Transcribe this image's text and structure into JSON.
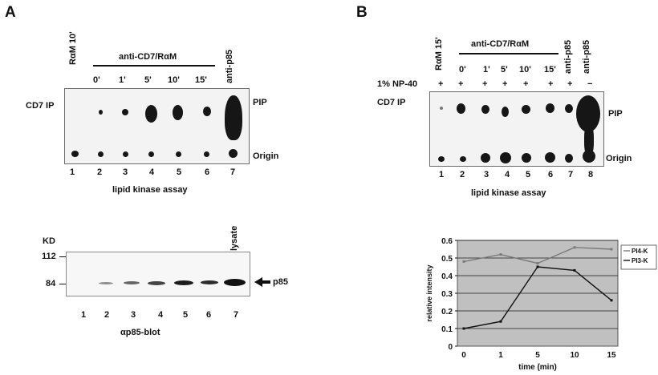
{
  "panel_a": {
    "letter": "A",
    "ip_label": "CD7 IP",
    "header_control": "RαM 10'",
    "header_group": "anti-CD7/RαM",
    "time_points": [
      "0'",
      "1'",
      "5'",
      "10'",
      "15'"
    ],
    "header_last": "anti-p85",
    "pip_label": "PIP",
    "origin_label": "Origin",
    "lane_numbers": [
      "1",
      "2",
      "3",
      "4",
      "5",
      "6",
      "7"
    ],
    "assay_label": "lipid kinase assay",
    "blot": {
      "kd_label": "KD",
      "marker_112": "112",
      "marker_84": "84",
      "lysate_label": "lysate",
      "p85_label": "p85",
      "lane_numbers": [
        "1",
        "2",
        "3",
        "4",
        "5",
        "6",
        "7"
      ],
      "caption": "αp85-blot"
    }
  },
  "panel_b": {
    "letter": "B",
    "ip_label": "CD7 IP",
    "header_control": "RαM 15'",
    "header_group": "anti-CD7/RαM",
    "time_points": [
      "0'",
      "1'",
      "5'",
      "10'",
      "15'"
    ],
    "header_p85": "anti-p85",
    "header_p85_2": "anti-p85",
    "np40_label": "1% NP-40",
    "np40_signs": [
      "+",
      "+",
      "+",
      "+",
      "+",
      "+",
      "+",
      "−"
    ],
    "pip_label": "PIP",
    "origin_label": "Origin",
    "lane_numbers": [
      "1",
      "2",
      "3",
      "4",
      "5",
      "6",
      "7",
      "8"
    ],
    "assay_label": "lipid kinase assay"
  },
  "chart_data": {
    "type": "line",
    "categories": [
      "0",
      "1",
      "5",
      "10",
      "15"
    ],
    "xlabel": "time (min)",
    "ylabel": "relative intensity",
    "ylim": [
      0,
      0.6
    ],
    "yticks": [
      "0",
      "0.1",
      "0.2",
      "0.3",
      "0.4",
      "0.5",
      "0.6"
    ],
    "grid": true,
    "legend_position": "right",
    "series": [
      {
        "name": "PI4-K",
        "values": [
          0.48,
          0.52,
          0.47,
          0.56,
          0.55
        ],
        "color": "#7a7a7a"
      },
      {
        "name": "PI3-K",
        "values": [
          0.1,
          0.14,
          0.45,
          0.43,
          0.26
        ],
        "color": "#111111"
      }
    ],
    "plot_background": "#c0c0c0"
  }
}
